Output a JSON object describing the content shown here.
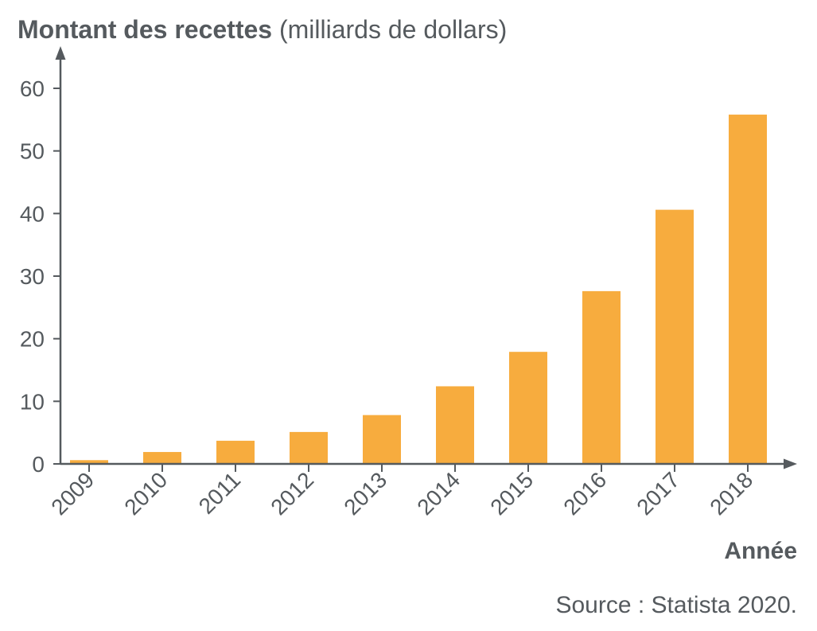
{
  "chart_data": {
    "type": "bar",
    "ylabel_bold": "Montant des recettes",
    "ylabel_normal": " (milliards de dollars)",
    "xlabel": "Année",
    "source": "Source : Statista 2020.",
    "categories": [
      "2009",
      "2010",
      "2011",
      "2012",
      "2013",
      "2014",
      "2015",
      "2016",
      "2017",
      "2018"
    ],
    "values": [
      0.6,
      1.9,
      3.7,
      5.1,
      7.8,
      12.4,
      17.9,
      27.6,
      40.6,
      55.8
    ],
    "yticks": [
      0,
      10,
      20,
      30,
      40,
      50,
      60
    ],
    "ylim": [
      0,
      60
    ],
    "bar_color": "#f7ac3e",
    "axis_color": "#555a5e",
    "grid": false
  }
}
